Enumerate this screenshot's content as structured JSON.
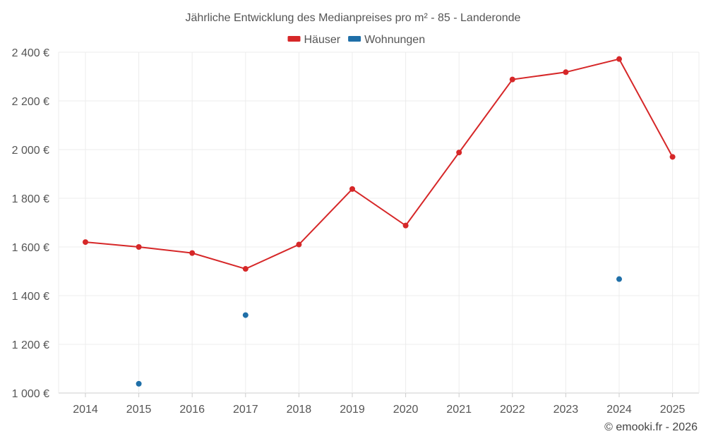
{
  "chart_data": {
    "type": "line",
    "title": "Jährliche Entwicklung des Medianpreises pro m² - 85 - Landeronde",
    "categories": [
      "2014",
      "2015",
      "2016",
      "2017",
      "2018",
      "2019",
      "2020",
      "2021",
      "2022",
      "2023",
      "2024",
      "2025"
    ],
    "series": [
      {
        "name": "Häuser",
        "color": "#d62728",
        "values": [
          1620,
          1600,
          1575,
          1510,
          1610,
          1838,
          1688,
          1988,
          2288,
          2318,
          2372,
          1970
        ]
      },
      {
        "name": "Wohnungen",
        "color": "#1f6fa8",
        "values": [
          null,
          1038,
          null,
          1320,
          null,
          null,
          null,
          null,
          null,
          null,
          1468,
          null
        ]
      }
    ],
    "ylim": [
      1000,
      2400
    ],
    "yticks": [
      1000,
      1200,
      1400,
      1600,
      1800,
      2000,
      2200,
      2400
    ],
    "ytick_labels": [
      "1 000 €",
      "1 200 €",
      "1 400 €",
      "1 600 €",
      "1 800 €",
      "2 000 €",
      "2 200 €",
      "2 400 €"
    ],
    "legend_position": "top-center",
    "grid": true
  },
  "credit": "© emooki.fr - 2026"
}
